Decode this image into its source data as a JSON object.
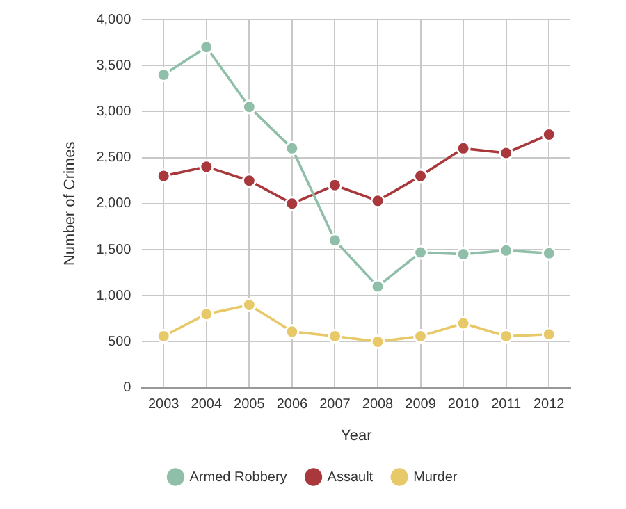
{
  "chart_data": {
    "type": "line",
    "xlabel": "Year",
    "ylabel": "Number of Crimes",
    "categories": [
      "2003",
      "2004",
      "2005",
      "2006",
      "2007",
      "2008",
      "2009",
      "2010",
      "2011",
      "2012"
    ],
    "series": [
      {
        "name": "Armed Robbery",
        "color": "#8fbfa8",
        "values": [
          3400,
          3700,
          3050,
          2600,
          1600,
          1100,
          1470,
          1450,
          1490,
          1460
        ]
      },
      {
        "name": "Assault",
        "color": "#a8383b",
        "values": [
          2300,
          2400,
          2250,
          2000,
          2200,
          2030,
          2300,
          2600,
          2550,
          2750
        ]
      },
      {
        "name": "Murder",
        "color": "#e8c96a",
        "values": [
          560,
          800,
          900,
          610,
          560,
          500,
          560,
          700,
          560,
          580
        ]
      }
    ],
    "ylim": [
      0,
      4000
    ],
    "yticks": [
      {
        "value": 0,
        "label": "0"
      },
      {
        "value": 500,
        "label": "500"
      },
      {
        "value": 1000,
        "label": "1,000"
      },
      {
        "value": 1500,
        "label": "1,500"
      },
      {
        "value": 2000,
        "label": "2,000"
      },
      {
        "value": 2500,
        "label": "2,500"
      },
      {
        "value": 3000,
        "label": "3,000"
      },
      {
        "value": 3500,
        "label": "3,500"
      },
      {
        "value": 4000,
        "label": "4,000"
      }
    ],
    "grid": true,
    "legend": "bottom",
    "marker": "circle",
    "line_style": "solid"
  }
}
